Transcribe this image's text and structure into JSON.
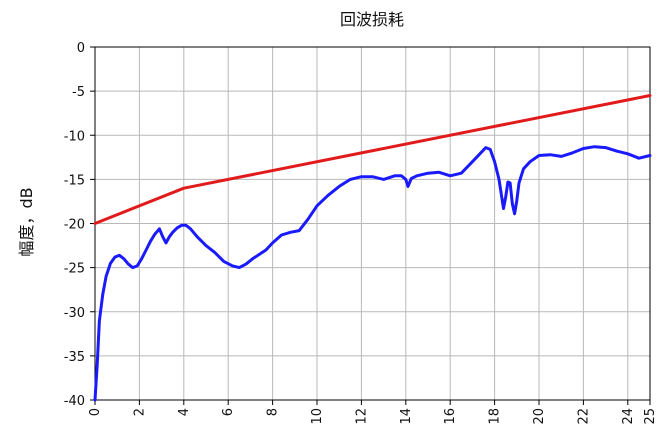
{
  "chart_data": {
    "type": "line",
    "title": "回波损耗",
    "xlabel": "",
    "ylabel": "幅度，dB",
    "xlim": [
      0,
      25
    ],
    "ylim": [
      -40,
      0
    ],
    "x_ticks": [
      0,
      2,
      4,
      6,
      8,
      10,
      12,
      14,
      16,
      18,
      20,
      22,
      24,
      25
    ],
    "y_ticks": [
      0,
      -5,
      -10,
      -15,
      -20,
      -25,
      -30,
      -35,
      -40
    ],
    "grid": true,
    "legend": "none",
    "series": [
      {
        "color": "#e11b1b",
        "x": [
          0,
          4,
          25
        ],
        "y": [
          -20,
          -16,
          -5.5
        ]
      },
      {
        "color": "#1a1aff",
        "x": [
          0,
          0.1,
          0.2,
          0.35,
          0.5,
          0.7,
          0.9,
          1.1,
          1.3,
          1.5,
          1.7,
          1.9,
          2.1,
          2.3,
          2.5,
          2.7,
          2.9,
          3.05,
          3.2,
          3.35,
          3.5,
          3.7,
          3.9,
          4.1,
          4.3,
          4.6,
          5.0,
          5.4,
          5.8,
          6.2,
          6.5,
          6.8,
          7.1,
          7.4,
          7.7,
          8.0,
          8.4,
          8.8,
          9.2,
          9.6,
          10.0,
          10.5,
          11.0,
          11.5,
          12.0,
          12.5,
          13.0,
          13.5,
          13.8,
          14.0,
          14.1,
          14.25,
          14.5,
          15.0,
          15.5,
          16.0,
          16.5,
          17.0,
          17.3,
          17.6,
          17.8,
          18.0,
          18.2,
          18.4,
          18.5,
          18.6,
          18.7,
          18.8,
          18.9,
          19.0,
          19.1,
          19.3,
          19.6,
          20.0,
          20.5,
          21.0,
          21.5,
          22.0,
          22.5,
          23.0,
          23.5,
          24.0,
          24.5,
          25.0
        ],
        "y": [
          -40,
          -36,
          -31,
          -28,
          -26,
          -24.5,
          -23.8,
          -23.6,
          -24,
          -24.6,
          -25,
          -24.8,
          -24,
          -23,
          -22,
          -21.2,
          -20.6,
          -21.5,
          -22.2,
          -21.5,
          -21,
          -20.5,
          -20.2,
          -20.2,
          -20.6,
          -21.5,
          -22.5,
          -23.3,
          -24.3,
          -24.8,
          -25,
          -24.6,
          -24,
          -23.5,
          -23,
          -22.2,
          -21.3,
          -21,
          -20.8,
          -19.5,
          -18,
          -16.8,
          -15.8,
          -15,
          -14.7,
          -14.7,
          -15,
          -14.6,
          -14.6,
          -15,
          -15.8,
          -14.9,
          -14.6,
          -14.3,
          -14.2,
          -14.6,
          -14.3,
          -13,
          -12.2,
          -11.4,
          -11.6,
          -13,
          -15,
          -18.3,
          -17,
          -15.3,
          -15.4,
          -17.8,
          -18.9,
          -17.4,
          -15.4,
          -13.8,
          -13,
          -12.3,
          -12.2,
          -12.4,
          -12,
          -11.5,
          -11.3,
          -11.4,
          -11.8,
          -12.1,
          -12.6,
          -12.3
        ]
      }
    ]
  }
}
